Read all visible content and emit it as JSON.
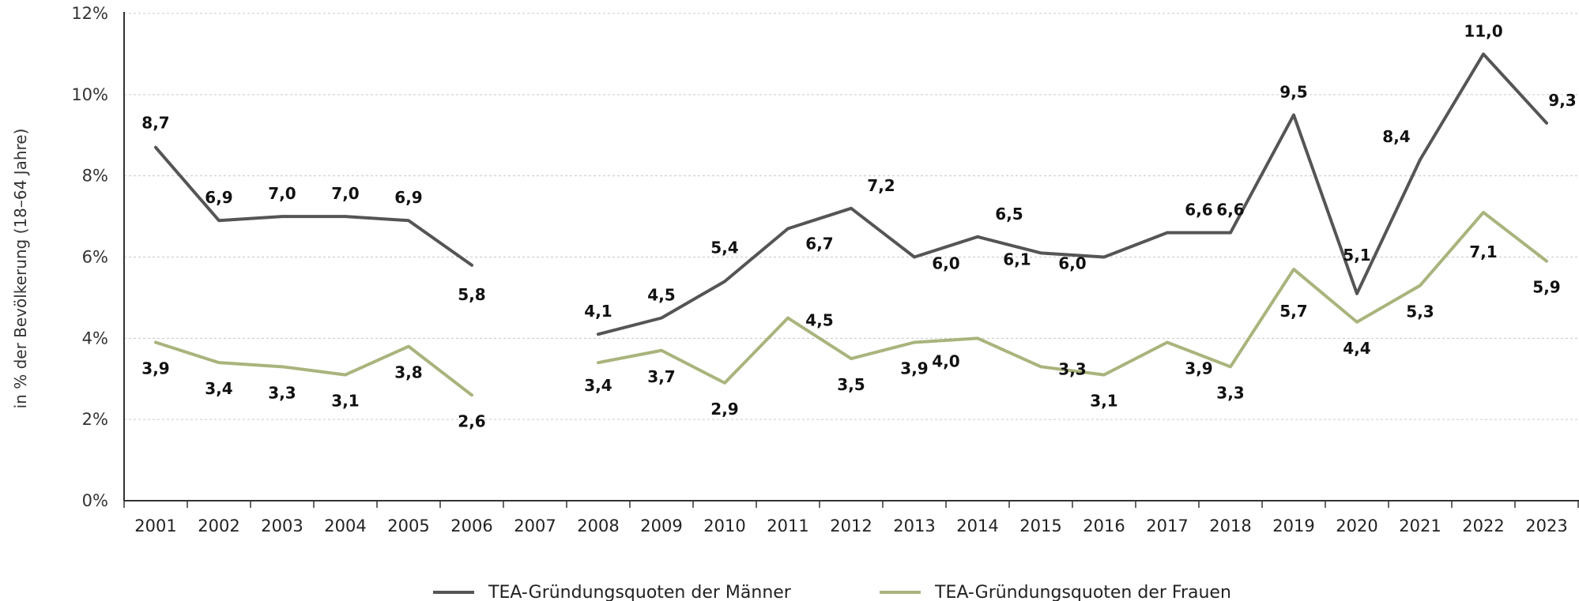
{
  "chart_data": {
    "type": "line",
    "title": "",
    "xlabel": "",
    "ylabel": "in % der Bevölkerung (18–64 Jahre)",
    "ylim": [
      0,
      12
    ],
    "yticks": [
      "0%",
      "2%",
      "4%",
      "6%",
      "8%",
      "10%",
      "12%"
    ],
    "ytick_values": [
      0,
      2,
      4,
      6,
      8,
      10,
      12
    ],
    "grid": true,
    "legend_position": "bottom",
    "categories": [
      "2001",
      "2002",
      "2003",
      "2004",
      "2005",
      "2006",
      "2007",
      "2008",
      "2009",
      "2010",
      "2011",
      "2012",
      "2013",
      "2014",
      "2015",
      "2016",
      "2017",
      "2018",
      "2019",
      "2020",
      "2021",
      "2022",
      "2023"
    ],
    "series": [
      {
        "name": "TEA-Gründungsquoten der Männer",
        "color": "#555555",
        "values": [
          8.7,
          6.9,
          7.0,
          7.0,
          6.9,
          5.8,
          null,
          4.1,
          4.5,
          5.4,
          6.7,
          7.2,
          6.0,
          6.5,
          6.1,
          6.0,
          6.6,
          6.6,
          9.5,
          5.1,
          8.4,
          11.0,
          9.3
        ],
        "labels": [
          "8,7",
          "6,9",
          "7,0",
          "7,0",
          "6,9",
          "5,8",
          "",
          "4,1",
          "4,5",
          "5,4",
          "6,7",
          "7,2",
          "6,0",
          "6,5",
          "6,1",
          "6,0",
          "6,6",
          "6,6",
          "9,5",
          "5,1",
          "8,4",
          "11,0",
          "9,3"
        ]
      },
      {
        "name": "TEA-Gründungsquoten der Frauen",
        "color": "#a8b47c",
        "values": [
          3.9,
          3.4,
          3.3,
          3.1,
          3.8,
          2.6,
          null,
          3.4,
          3.7,
          2.9,
          4.5,
          3.5,
          3.9,
          4.0,
          3.3,
          3.1,
          3.9,
          3.3,
          5.7,
          4.4,
          5.3,
          7.1,
          5.9
        ],
        "labels": [
          "3,9",
          "3,4",
          "3,3",
          "3,1",
          "3,8",
          "2,6",
          "",
          "3,4",
          "3,7",
          "2,9",
          "4,5",
          "3,5",
          "3,9",
          "4,0",
          "3,3",
          "3,1",
          "3,9",
          "3,3",
          "5,7",
          "4,4",
          "5,3",
          "7,1",
          "5,9"
        ]
      }
    ]
  }
}
